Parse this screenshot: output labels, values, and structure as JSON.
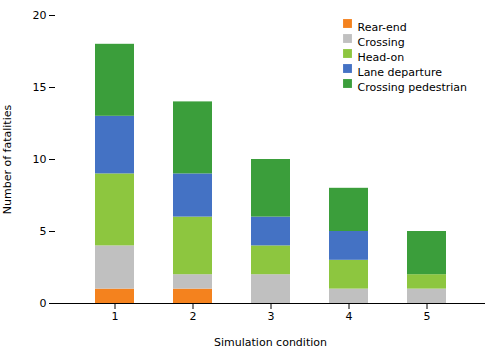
{
  "chart_data": {
    "type": "bar",
    "stacked": true,
    "categories": [
      "1",
      "2",
      "3",
      "4",
      "5"
    ],
    "series": [
      {
        "name": "Rear-end",
        "color": "#F4821E",
        "values": [
          1,
          1,
          0,
          0,
          0
        ]
      },
      {
        "name": "Crossing",
        "color": "#C0C0C0",
        "values": [
          3,
          1,
          2,
          1,
          1
        ]
      },
      {
        "name": "Head-on",
        "color": "#8DC63F",
        "values": [
          5,
          4,
          2,
          2,
          1
        ]
      },
      {
        "name": "Lane departure",
        "color": "#4472C4",
        "values": [
          4,
          3,
          2,
          2,
          0
        ]
      },
      {
        "name": "Crossing pedestrian",
        "color": "#3B9E3B",
        "values": [
          5,
          5,
          4,
          3,
          3
        ]
      }
    ],
    "xlabel": "Simulation condition",
    "ylabel": "Number of fatalities",
    "ylim": [
      0,
      20
    ],
    "yticks": [
      0,
      5,
      10,
      15,
      20
    ],
    "legend": "upper right"
  }
}
